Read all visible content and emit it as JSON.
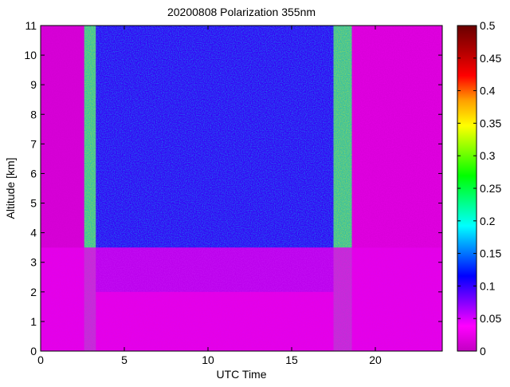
{
  "chart_data": {
    "type": "heatmap",
    "title": "20200808 Polarization 355nm",
    "xlabel": "UTC Time",
    "ylabel": "Altitude [km]",
    "xlim": [
      0,
      24
    ],
    "ylim": [
      0,
      11
    ],
    "x_ticks": [
      0,
      5,
      10,
      15,
      20
    ],
    "x_tick_labels": [
      "0",
      "5",
      "10",
      "15",
      "20"
    ],
    "y_ticks": [
      0,
      1,
      2,
      3,
      4,
      5,
      6,
      7,
      8,
      9,
      10,
      11
    ],
    "y_tick_labels": [
      "0",
      "1",
      "2",
      "3",
      "4",
      "5",
      "6",
      "7",
      "8",
      "9",
      "10",
      "11"
    ],
    "colorbar": {
      "range": [
        0,
        0.5
      ],
      "ticks": [
        0,
        0.05,
        0.1,
        0.15,
        0.2,
        0.25,
        0.3,
        0.35,
        0.4,
        0.45,
        0.5
      ],
      "tick_labels": [
        "0",
        "0.05",
        "0.1",
        "0.15",
        "0.2",
        "0.25",
        "0.3",
        "0.35",
        "0.4",
        "0.45",
        "0.5"
      ],
      "colors": [
        "#c200c2",
        "#ff00ff",
        "#7f00ff",
        "#0000ff",
        "#0080ff",
        "#00ffff",
        "#00ff80",
        "#00ff00",
        "#80ff00",
        "#ffff00",
        "#ffa000",
        "#ff0000",
        "#b00000",
        "#6a0000"
      ]
    },
    "features": [
      {
        "x_start": 2.6,
        "x_end": 3.3,
        "y_start": 0,
        "y_end": 11,
        "value_range": [
          0.1,
          0.35
        ]
      },
      {
        "x_start": 3.3,
        "x_end": 17.5,
        "y_start": 2.0,
        "y_end": 11,
        "value_range": [
          0.03,
          0.2
        ]
      },
      {
        "x_start": 17.5,
        "x_end": 18.6,
        "y_start": 0,
        "y_end": 11,
        "value_range": [
          0.1,
          0.35
        ]
      },
      {
        "x_start": 0,
        "x_end": 24,
        "y_start": 0,
        "y_end": 3.5,
        "value_range": [
          0.0,
          0.05
        ]
      },
      {
        "x_start": 0,
        "x_end": 2.6,
        "y_start": 3.5,
        "y_end": 11,
        "value_range": [
          0.0,
          0.02
        ]
      },
      {
        "x_start": 18.6,
        "x_end": 24,
        "y_start": 3.5,
        "y_end": 11,
        "value_range": [
          0.0,
          0.03
        ]
      }
    ]
  }
}
